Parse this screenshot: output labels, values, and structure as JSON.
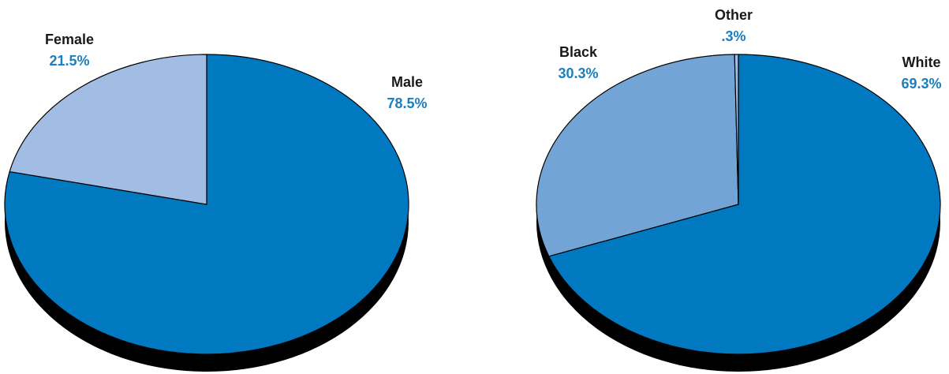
{
  "chart_data": [
    {
      "type": "pie",
      "categories": [
        "Male",
        "Female"
      ],
      "values": [
        78.5,
        21.5
      ],
      "value_labels": [
        "78.5%",
        "21.5%"
      ],
      "colors": [
        "#0079c1",
        "#a2bde3"
      ],
      "label_color": "#1a7fc0",
      "shadow_color": "#000000",
      "start_angle_deg": 0,
      "direction": "clockwise",
      "style": "3d-tilted"
    },
    {
      "type": "pie",
      "categories": [
        "White",
        "Black",
        "Other"
      ],
      "values": [
        69.3,
        30.3,
        0.3
      ],
      "value_labels": [
        "69.3%",
        "30.3%",
        ".3%"
      ],
      "colors": [
        "#0079c1",
        "#72a5d6",
        "#a2bde3"
      ],
      "label_color": "#1a7fc0",
      "shadow_color": "#000000",
      "start_angle_deg": 0,
      "direction": "clockwise",
      "style": "3d-tilted"
    }
  ]
}
